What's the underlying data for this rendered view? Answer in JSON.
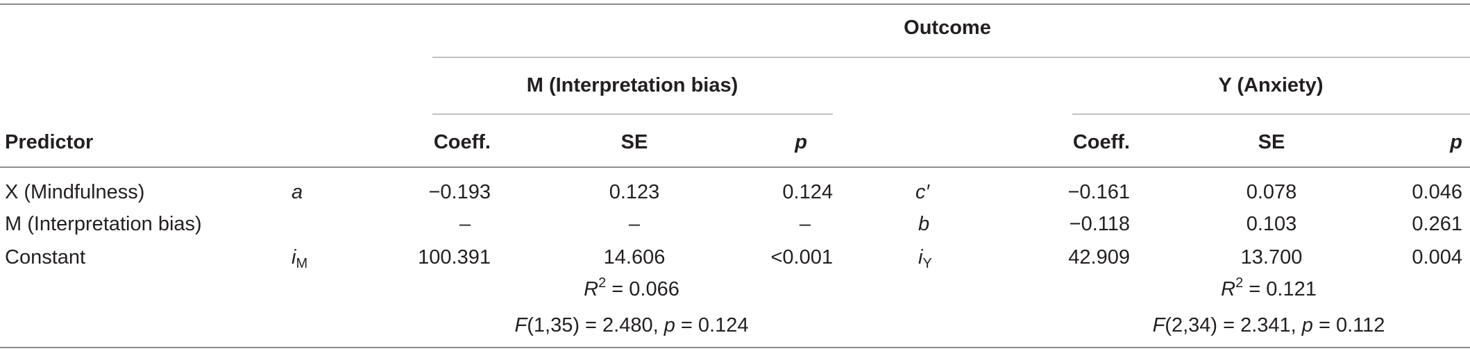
{
  "header": {
    "outcome": "Outcome",
    "group_m": "M (Interpretation bias)",
    "group_y": "Y (Anxiety)",
    "predictor": "Predictor",
    "coeff": "Coeff.",
    "se": "SE",
    "p": "p"
  },
  "rows": [
    {
      "predictor": "X (Mindfulness)",
      "m_path": "a",
      "m_path_sub": "",
      "m_coeff": "−0.193",
      "m_se": "0.123",
      "m_p": "0.124",
      "y_path": "c′",
      "y_path_sub": "",
      "y_coeff": "−0.161",
      "y_se": "0.078",
      "y_p": "0.046"
    },
    {
      "predictor": "M (Interpretation bias)",
      "m_path": "",
      "m_path_sub": "",
      "m_coeff": "–",
      "m_se": "–",
      "m_p": "–",
      "y_path": "b",
      "y_path_sub": "",
      "y_coeff": "−0.118",
      "y_se": "0.103",
      "y_p": "0.261"
    },
    {
      "predictor": "Constant",
      "m_path": "i",
      "m_path_sub": "M",
      "m_coeff": "100.391",
      "m_se": "14.606",
      "m_p": "<0.001",
      "y_path": "i",
      "y_path_sub": "Y",
      "y_coeff": "42.909",
      "y_se": "13.700",
      "y_p": "0.004"
    }
  ],
  "fit": {
    "m_r2_label": "R",
    "m_r2_sup": "2",
    "m_r2_value": " = 0.066",
    "m_f_label": "F",
    "m_f_args": "(1,35) = 2.480, ",
    "m_p_label": "p",
    "m_p_value": " = 0.124",
    "y_r2_label": "R",
    "y_r2_sup": "2",
    "y_r2_value": " = 0.121",
    "y_f_label": "F",
    "y_f_args": "(2,34) = 2.341, ",
    "y_p_label": "p",
    "y_p_value": " = 0.112"
  }
}
